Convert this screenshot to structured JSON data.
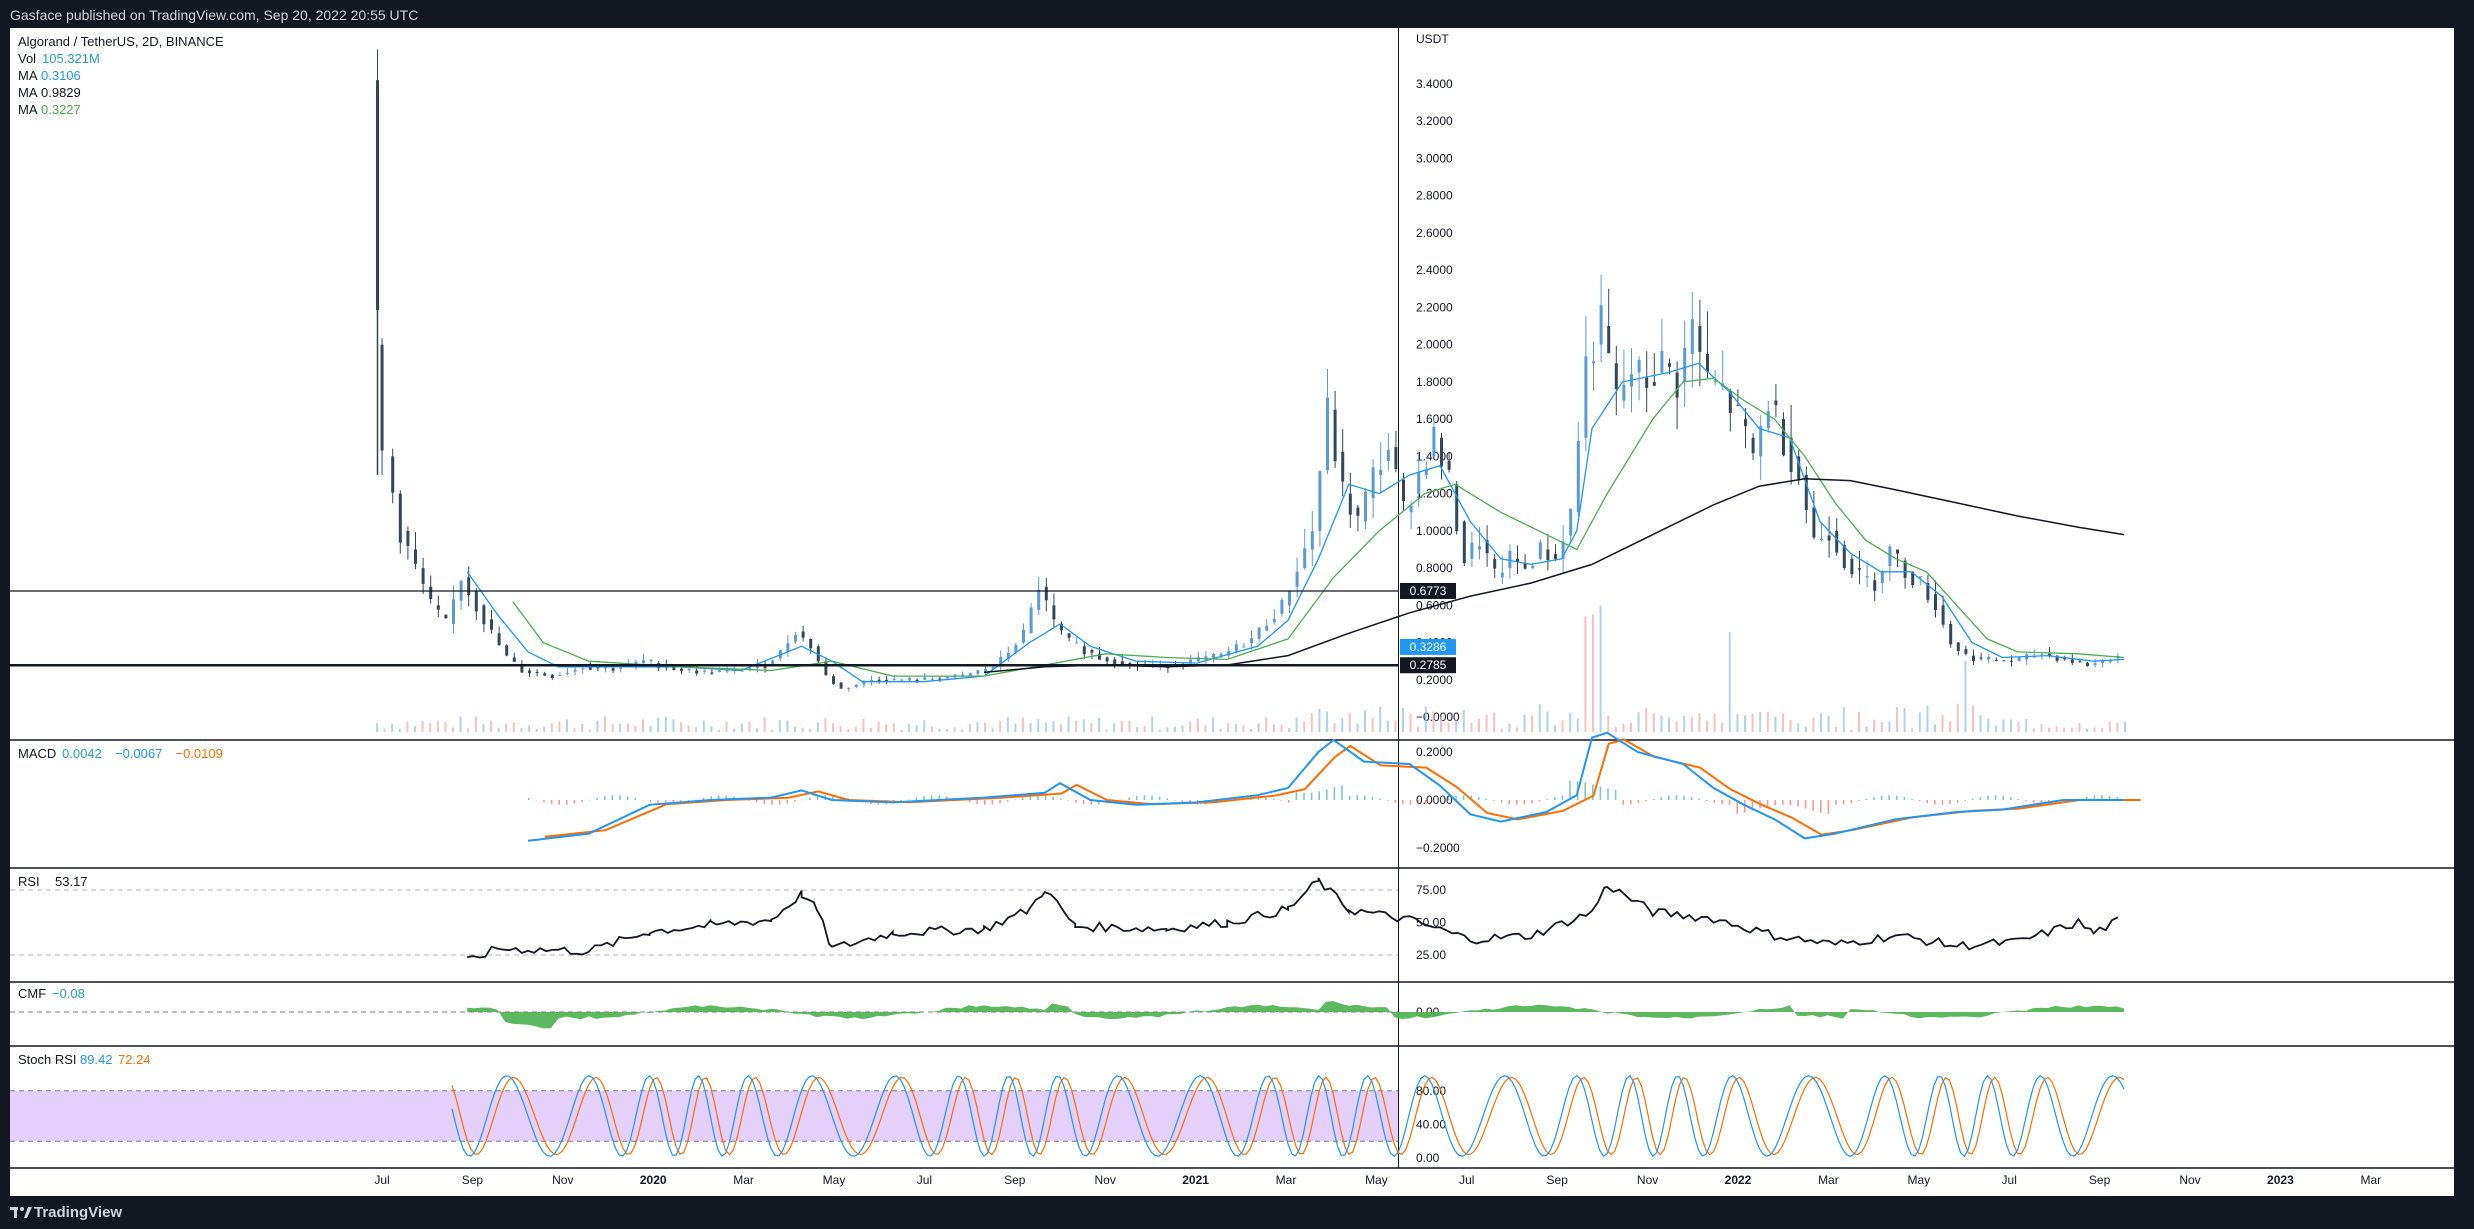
{
  "header": {
    "published": "Gasface published on TradingView.com, Sep 20, 2022 20:55 UTC"
  },
  "footer": {
    "brand": "TradingView"
  },
  "colors": {
    "up": "#5b9bd5",
    "down": "#33475b",
    "ma_fast": "#2196f3",
    "ma_mid": "#4caf50",
    "ma_slow": "#131722",
    "macd": "#2196f3",
    "signal": "#ff6d00",
    "rsi": "#131722",
    "cmf": "#4caf50",
    "stoch_k": "#2196f3",
    "stoch_d": "#ff6d00",
    "stoch_band": "#e1c8fa"
  },
  "chart_data": {
    "type": "candlestick",
    "title": "Algorand / TetherUS, 2D, BINANCE",
    "currency": "USDT",
    "legend": {
      "vol": {
        "label": "Vol",
        "value": "105.321M"
      },
      "ma": [
        {
          "label": "MA",
          "value": "0.3106"
        },
        {
          "label": "MA",
          "value": "0.9829"
        },
        {
          "label": "MA",
          "value": "0.3227"
        }
      ]
    },
    "x_ticks": [
      "Jul",
      "Sep",
      "Nov",
      "2020",
      "Mar",
      "May",
      "Jul",
      "Sep",
      "Nov",
      "2021",
      "Mar",
      "May",
      "Jul",
      "Sep",
      "Nov",
      "2022",
      "Mar",
      "May",
      "Jul",
      "Sep",
      "Nov",
      "2023",
      "Mar"
    ],
    "y_ticks": [
      "3.4000",
      "3.2000",
      "3.0000",
      "2.8000",
      "2.6000",
      "2.4000",
      "2.2000",
      "2.0000",
      "1.8000",
      "1.6000",
      "1.4000",
      "1.2000",
      "1.0000",
      "0.8000",
      "0.6000",
      "0.4000",
      "0.2000",
      "−0.0000"
    ],
    "ylim": [
      -0.08,
      3.55
    ],
    "price_series": [
      {
        "t": 0,
        "v": 3.42
      },
      {
        "t": 0.3,
        "v": 2.0
      },
      {
        "t": 1,
        "v": 1.4
      },
      {
        "t": 2,
        "v": 1.0
      },
      {
        "t": 3,
        "v": 0.8
      },
      {
        "t": 4,
        "v": 0.6
      },
      {
        "t": 5,
        "v": 0.5
      },
      {
        "t": 6,
        "v": 0.75
      },
      {
        "t": 7,
        "v": 0.6
      },
      {
        "t": 8,
        "v": 0.45
      },
      {
        "t": 9,
        "v": 0.32
      },
      {
        "t": 10,
        "v": 0.25
      },
      {
        "t": 12,
        "v": 0.22
      },
      {
        "t": 14,
        "v": 0.27
      },
      {
        "t": 16,
        "v": 0.26
      },
      {
        "t": 18,
        "v": 0.3
      },
      {
        "t": 20,
        "v": 0.26
      },
      {
        "t": 22,
        "v": 0.24
      },
      {
        "t": 24,
        "v": 0.25
      },
      {
        "t": 26,
        "v": 0.28
      },
      {
        "t": 27,
        "v": 0.35
      },
      {
        "t": 28,
        "v": 0.46
      },
      {
        "t": 29,
        "v": 0.38
      },
      {
        "t": 30,
        "v": 0.22
      },
      {
        "t": 31,
        "v": 0.15
      },
      {
        "t": 33,
        "v": 0.2
      },
      {
        "t": 36,
        "v": 0.2
      },
      {
        "t": 39,
        "v": 0.22
      },
      {
        "t": 41,
        "v": 0.27
      },
      {
        "t": 42,
        "v": 0.35
      },
      {
        "t": 43,
        "v": 0.45
      },
      {
        "t": 44,
        "v": 0.7
      },
      {
        "t": 45,
        "v": 0.5
      },
      {
        "t": 46,
        "v": 0.4
      },
      {
        "t": 48,
        "v": 0.32
      },
      {
        "t": 50,
        "v": 0.28
      },
      {
        "t": 52,
        "v": 0.27
      },
      {
        "t": 54,
        "v": 0.3
      },
      {
        "t": 56,
        "v": 0.33
      },
      {
        "t": 58,
        "v": 0.42
      },
      {
        "t": 60,
        "v": 0.6
      },
      {
        "t": 62,
        "v": 1.0
      },
      {
        "t": 63,
        "v": 1.65
      },
      {
        "t": 64,
        "v": 1.2
      },
      {
        "t": 65,
        "v": 1.05
      },
      {
        "t": 66,
        "v": 1.3
      },
      {
        "t": 67,
        "v": 1.45
      },
      {
        "t": 68,
        "v": 1.1
      },
      {
        "t": 69,
        "v": 1.3
      },
      {
        "t": 70,
        "v": 1.5
      },
      {
        "t": 71,
        "v": 1.25
      },
      {
        "t": 72,
        "v": 0.85
      },
      {
        "t": 73,
        "v": 0.95
      },
      {
        "t": 74,
        "v": 0.75
      },
      {
        "t": 75,
        "v": 0.85
      },
      {
        "t": 76,
        "v": 0.8
      },
      {
        "t": 77,
        "v": 0.9
      },
      {
        "t": 78,
        "v": 0.85
      },
      {
        "t": 79,
        "v": 1.1
      },
      {
        "t": 80,
        "v": 1.9
      },
      {
        "t": 81,
        "v": 2.1
      },
      {
        "t": 82,
        "v": 1.7
      },
      {
        "t": 83,
        "v": 1.85
      },
      {
        "t": 84,
        "v": 1.8
      },
      {
        "t": 85,
        "v": 1.9
      },
      {
        "t": 86,
        "v": 1.8
      },
      {
        "t": 87,
        "v": 2.1
      },
      {
        "t": 88,
        "v": 1.8
      },
      {
        "t": 89,
        "v": 1.75
      },
      {
        "t": 90,
        "v": 1.6
      },
      {
        "t": 91,
        "v": 1.4
      },
      {
        "t": 92,
        "v": 1.7
      },
      {
        "t": 93,
        "v": 1.5
      },
      {
        "t": 94,
        "v": 1.3
      },
      {
        "t": 95,
        "v": 0.95
      },
      {
        "t": 96,
        "v": 1.0
      },
      {
        "t": 97,
        "v": 0.85
      },
      {
        "t": 98,
        "v": 0.75
      },
      {
        "t": 99,
        "v": 0.72
      },
      {
        "t": 100,
        "v": 0.9
      },
      {
        "t": 101,
        "v": 0.78
      },
      {
        "t": 102,
        "v": 0.72
      },
      {
        "t": 103,
        "v": 0.6
      },
      {
        "t": 104,
        "v": 0.4
      },
      {
        "t": 105,
        "v": 0.33
      },
      {
        "t": 106,
        "v": 0.31
      },
      {
        "t": 108,
        "v": 0.3
      },
      {
        "t": 110,
        "v": 0.34
      },
      {
        "t": 112,
        "v": 0.3
      },
      {
        "t": 113,
        "v": 0.28
      },
      {
        "t": 114,
        "v": 0.3
      },
      {
        "t": 115,
        "v": 0.33
      }
    ],
    "ma_fast": [
      {
        "t": 6,
        "v": 0.78
      },
      {
        "t": 8,
        "v": 0.55
      },
      {
        "t": 10,
        "v": 0.35
      },
      {
        "t": 12,
        "v": 0.27
      },
      {
        "t": 16,
        "v": 0.27
      },
      {
        "t": 20,
        "v": 0.27
      },
      {
        "t": 24,
        "v": 0.25
      },
      {
        "t": 28,
        "v": 0.38
      },
      {
        "t": 30,
        "v": 0.3
      },
      {
        "t": 32,
        "v": 0.19
      },
      {
        "t": 36,
        "v": 0.19
      },
      {
        "t": 40,
        "v": 0.22
      },
      {
        "t": 43,
        "v": 0.4
      },
      {
        "t": 45,
        "v": 0.5
      },
      {
        "t": 47,
        "v": 0.38
      },
      {
        "t": 50,
        "v": 0.3
      },
      {
        "t": 54,
        "v": 0.29
      },
      {
        "t": 58,
        "v": 0.38
      },
      {
        "t": 60,
        "v": 0.52
      },
      {
        "t": 62,
        "v": 0.85
      },
      {
        "t": 64,
        "v": 1.25
      },
      {
        "t": 66,
        "v": 1.2
      },
      {
        "t": 68,
        "v": 1.3
      },
      {
        "t": 70,
        "v": 1.35
      },
      {
        "t": 72,
        "v": 1.05
      },
      {
        "t": 74,
        "v": 0.85
      },
      {
        "t": 76,
        "v": 0.82
      },
      {
        "t": 78,
        "v": 0.85
      },
      {
        "t": 79,
        "v": 1.0
      },
      {
        "t": 80,
        "v": 1.55
      },
      {
        "t": 82,
        "v": 1.8
      },
      {
        "t": 85,
        "v": 1.85
      },
      {
        "t": 87,
        "v": 1.9
      },
      {
        "t": 89,
        "v": 1.75
      },
      {
        "t": 91,
        "v": 1.55
      },
      {
        "t": 93,
        "v": 1.5
      },
      {
        "t": 95,
        "v": 1.05
      },
      {
        "t": 97,
        "v": 0.88
      },
      {
        "t": 99,
        "v": 0.78
      },
      {
        "t": 101,
        "v": 0.78
      },
      {
        "t": 103,
        "v": 0.65
      },
      {
        "t": 105,
        "v": 0.4
      },
      {
        "t": 107,
        "v": 0.32
      },
      {
        "t": 110,
        "v": 0.33
      },
      {
        "t": 113,
        "v": 0.3
      },
      {
        "t": 115,
        "v": 0.31
      }
    ],
    "ma_mid": [
      {
        "t": 9,
        "v": 0.62
      },
      {
        "t": 11,
        "v": 0.4
      },
      {
        "t": 14,
        "v": 0.3
      },
      {
        "t": 20,
        "v": 0.27
      },
      {
        "t": 26,
        "v": 0.25
      },
      {
        "t": 30,
        "v": 0.3
      },
      {
        "t": 34,
        "v": 0.22
      },
      {
        "t": 40,
        "v": 0.22
      },
      {
        "t": 44,
        "v": 0.28
      },
      {
        "t": 48,
        "v": 0.34
      },
      {
        "t": 52,
        "v": 0.32
      },
      {
        "t": 56,
        "v": 0.31
      },
      {
        "t": 60,
        "v": 0.42
      },
      {
        "t": 63,
        "v": 0.75
      },
      {
        "t": 66,
        "v": 1.0
      },
      {
        "t": 69,
        "v": 1.2
      },
      {
        "t": 71,
        "v": 1.25
      },
      {
        "t": 74,
        "v": 1.1
      },
      {
        "t": 77,
        "v": 0.98
      },
      {
        "t": 79,
        "v": 0.9
      },
      {
        "t": 81,
        "v": 1.2
      },
      {
        "t": 84,
        "v": 1.6
      },
      {
        "t": 86,
        "v": 1.8
      },
      {
        "t": 88,
        "v": 1.82
      },
      {
        "t": 90,
        "v": 1.7
      },
      {
        "t": 92,
        "v": 1.6
      },
      {
        "t": 94,
        "v": 1.4
      },
      {
        "t": 96,
        "v": 1.15
      },
      {
        "t": 98,
        "v": 0.95
      },
      {
        "t": 100,
        "v": 0.85
      },
      {
        "t": 102,
        "v": 0.78
      },
      {
        "t": 104,
        "v": 0.6
      },
      {
        "t": 106,
        "v": 0.42
      },
      {
        "t": 108,
        "v": 0.35
      },
      {
        "t": 112,
        "v": 0.34
      },
      {
        "t": 115,
        "v": 0.32
      }
    ],
    "ma_slow": [
      {
        "t": 40,
        "v": 0.24
      },
      {
        "t": 44,
        "v": 0.27
      },
      {
        "t": 48,
        "v": 0.28
      },
      {
        "t": 52,
        "v": 0.27
      },
      {
        "t": 56,
        "v": 0.28
      },
      {
        "t": 60,
        "v": 0.33
      },
      {
        "t": 64,
        "v": 0.45
      },
      {
        "t": 68,
        "v": 0.56
      },
      {
        "t": 72,
        "v": 0.65
      },
      {
        "t": 76,
        "v": 0.72
      },
      {
        "t": 80,
        "v": 0.82
      },
      {
        "t": 84,
        "v": 0.98
      },
      {
        "t": 88,
        "v": 1.14
      },
      {
        "t": 91,
        "v": 1.24
      },
      {
        "t": 94,
        "v": 1.28
      },
      {
        "t": 97,
        "v": 1.27
      },
      {
        "t": 100,
        "v": 1.22
      },
      {
        "t": 104,
        "v": 1.15
      },
      {
        "t": 108,
        "v": 1.08
      },
      {
        "t": 112,
        "v": 1.02
      },
      {
        "t": 115,
        "v": 0.98
      }
    ],
    "price_levels": [
      {
        "value": 0.6773,
        "label": "0.6773"
      },
      {
        "value": 0.2785,
        "label": "0.2785"
      }
    ],
    "last_price": {
      "value": 0.3286,
      "label": "0.3286"
    },
    "macd": {
      "label": "MACD",
      "values": [
        "0.0042",
        "−0.0067",
        "−0.0109"
      ],
      "y_ticks": [
        "0.2000",
        "0.0000",
        "−0.2000"
      ]
    },
    "rsi": {
      "label": "RSI",
      "value": "53.17",
      "y_ticks": [
        "75.00",
        "50.00",
        "25.00"
      ]
    },
    "cmf": {
      "label": "CMF",
      "value": "−0.08",
      "y_ticks": [
        "0.00"
      ]
    },
    "stoch": {
      "label": "Stoch RSI",
      "k": "89.42",
      "d": "72.24",
      "y_ticks": [
        "80.00",
        "40.00",
        "0.00"
      ]
    }
  }
}
